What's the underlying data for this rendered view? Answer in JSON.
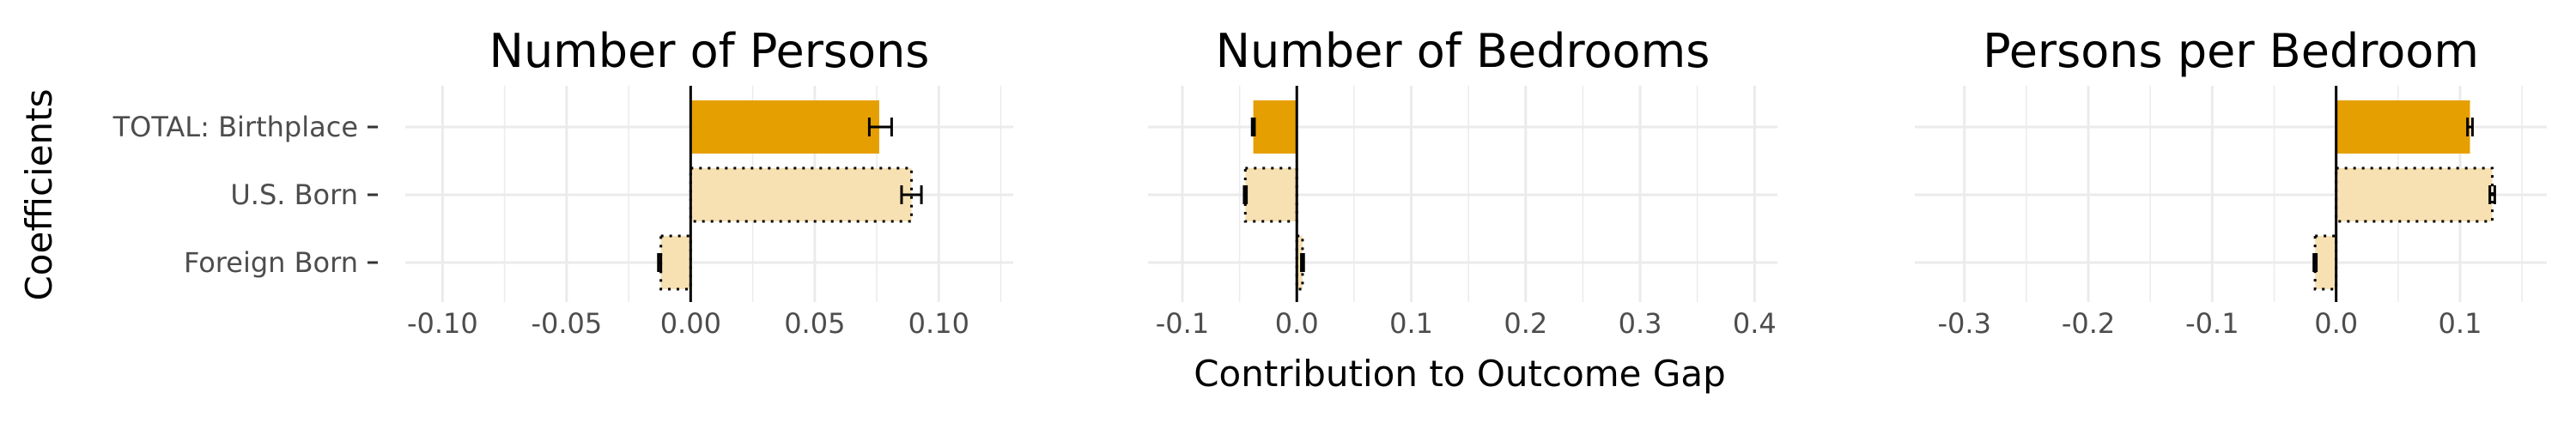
{
  "figure": {
    "ylabel": "Coefficients",
    "xlabel": "Contribution to Outcome Gap"
  },
  "colors": {
    "total_fill": "#E69F00",
    "component_fill": "#F7E1B2",
    "grid": "#EBEBEB",
    "axis_text": "#4D4D4D",
    "zero_line": "#000000"
  },
  "chart_data": [
    {
      "type": "bar",
      "title": "Number of Persons",
      "categories": [
        "TOTAL: Birthplace",
        "U.S. Born",
        "Foreign Born"
      ],
      "values": [
        0.076,
        0.089,
        -0.012
      ],
      "error": [
        [
          0.072,
          0.081
        ],
        [
          0.085,
          0.093
        ],
        [
          -0.013,
          -0.012
        ]
      ],
      "xlim": [
        -0.115,
        0.13
      ],
      "xticks": [
        -0.1,
        -0.05,
        0.0,
        0.05,
        0.1
      ],
      "xtick_labels": [
        "-0.10",
        "-0.05",
        "0.00",
        "0.05",
        "0.10"
      ],
      "show_category_labels": true
    },
    {
      "type": "bar",
      "title": "Number of Bedrooms",
      "categories": [
        "TOTAL: Birthplace",
        "U.S. Born",
        "Foreign Born"
      ],
      "values": [
        -0.038,
        -0.045,
        0.005
      ],
      "error": [
        [
          -0.039,
          -0.037
        ],
        [
          -0.046,
          -0.044
        ],
        [
          0.004,
          0.006
        ]
      ],
      "xlim": [
        -0.13,
        0.42
      ],
      "xticks": [
        -0.1,
        0.0,
        0.1,
        0.2,
        0.3,
        0.4
      ],
      "xtick_labels": [
        "-0.1",
        "0.0",
        "0.1",
        "0.2",
        "0.3",
        "0.4"
      ],
      "show_category_labels": false
    },
    {
      "type": "bar",
      "title": "Persons per Bedroom",
      "categories": [
        "TOTAL: Birthplace",
        "U.S. Born",
        "Foreign Born"
      ],
      "values": [
        0.108,
        0.126,
        -0.017
      ],
      "error": [
        [
          0.106,
          0.11
        ],
        [
          0.124,
          0.128
        ],
        [
          -0.018,
          -0.016
        ]
      ],
      "xlim": [
        -0.34,
        0.17
      ],
      "xticks": [
        -0.3,
        -0.2,
        -0.1,
        0.0,
        0.1
      ],
      "xtick_labels": [
        "-0.3",
        "-0.2",
        "-0.1",
        "0.0",
        "0.1"
      ],
      "show_category_labels": false
    }
  ]
}
